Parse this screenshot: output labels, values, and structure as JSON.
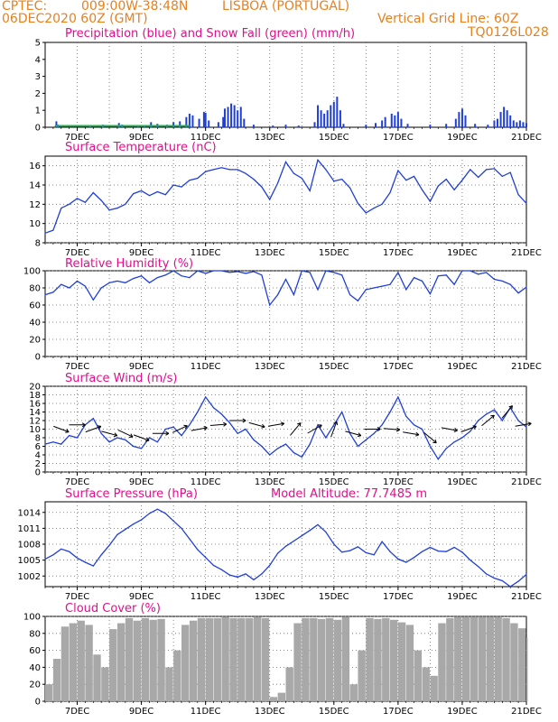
{
  "header": {
    "source": "CPTEC:",
    "coords": "009:00W-38:48N",
    "location": "LISBOA (PORTUGAL)",
    "run": "06DEC2020 60Z (GMT)",
    "grid_note": "Vertical Grid Line: 60Z",
    "model_code": "TQ0126L028"
  },
  "colors": {
    "header": "#e8801e",
    "title": "#e0108a",
    "line": "#1f3fd6",
    "snow": "#22b14c",
    "cloud": "#a8a8a8"
  },
  "chart_data": [
    {
      "type": "bar",
      "title": "Precipitation (blue) and Snow Fall (green) (mm/h)",
      "ylim": [
        0,
        5
      ],
      "yticks": [
        0,
        1,
        2,
        3,
        4,
        5
      ],
      "xticks": [
        "7DEC",
        "9DEC",
        "11DEC",
        "13DEC",
        "15DEC",
        "17DEC",
        "19DEC",
        "21DEC"
      ],
      "series": [
        {
          "points": [
            [
              6.35,
              0.35
            ],
            [
              6.4,
              0.15
            ],
            [
              7.4,
              0.1
            ],
            [
              7.8,
              0.15
            ],
            [
              8.3,
              0.25
            ],
            [
              8.4,
              0.15
            ],
            [
              8.9,
              0.1
            ],
            [
              9.1,
              0.1
            ],
            [
              9.3,
              0.3
            ],
            [
              9.5,
              0.2
            ],
            [
              9.8,
              0.15
            ],
            [
              10.0,
              0.3
            ],
            [
              10.2,
              0.35
            ],
            [
              10.4,
              0.6
            ],
            [
              10.5,
              0.8
            ],
            [
              10.6,
              0.7
            ],
            [
              10.8,
              0.5
            ],
            [
              10.95,
              0.9
            ],
            [
              11.0,
              0.85
            ],
            [
              11.1,
              0.4
            ],
            [
              11.4,
              0.3
            ],
            [
              11.55,
              0.6
            ],
            [
              11.6,
              1.1
            ],
            [
              11.7,
              1.2
            ],
            [
              11.8,
              1.4
            ],
            [
              11.9,
              1.3
            ],
            [
              12.0,
              1.0
            ],
            [
              12.1,
              1.2
            ],
            [
              12.2,
              0.5
            ],
            [
              12.5,
              0.15
            ],
            [
              13.1,
              0.1
            ],
            [
              13.5,
              0.15
            ],
            [
              13.9,
              0.1
            ],
            [
              14.4,
              0.3
            ],
            [
              14.5,
              1.3
            ],
            [
              14.6,
              1.0
            ],
            [
              14.7,
              0.8
            ],
            [
              14.8,
              1.0
            ],
            [
              14.9,
              1.3
            ],
            [
              15.0,
              1.5
            ],
            [
              15.1,
              1.8
            ],
            [
              15.2,
              1.0
            ],
            [
              15.3,
              0.2
            ],
            [
              16.0,
              0.15
            ],
            [
              16.3,
              0.25
            ],
            [
              16.5,
              0.4
            ],
            [
              16.6,
              0.6
            ],
            [
              16.8,
              0.8
            ],
            [
              16.9,
              0.7
            ],
            [
              17.0,
              0.9
            ],
            [
              17.1,
              0.5
            ],
            [
              17.3,
              0.2
            ],
            [
              18.0,
              0.15
            ],
            [
              18.5,
              0.2
            ],
            [
              18.8,
              0.5
            ],
            [
              18.9,
              0.9
            ],
            [
              19.0,
              1.1
            ],
            [
              19.1,
              0.7
            ],
            [
              19.4,
              0.2
            ],
            [
              19.8,
              0.15
            ],
            [
              20.0,
              0.4
            ],
            [
              20.1,
              0.5
            ],
            [
              20.2,
              0.9
            ],
            [
              20.3,
              1.2
            ],
            [
              20.4,
              1.0
            ],
            [
              20.5,
              0.7
            ],
            [
              20.6,
              0.4
            ],
            [
              20.7,
              0.3
            ],
            [
              20.8,
              0.4
            ],
            [
              20.9,
              0.3
            ],
            [
              21.0,
              0.25
            ]
          ]
        },
        {
          "points": [
            [
              6.3,
              0.08
            ],
            [
              7.0,
              0.08
            ],
            [
              8.0,
              0.08
            ],
            [
              9.0,
              0.08
            ],
            [
              10.0,
              0.08
            ],
            [
              10.5,
              0.08
            ]
          ]
        }
      ]
    },
    {
      "type": "line",
      "title": "Surface Temperature (nC)",
      "ylim": [
        8,
        17
      ],
      "yticks": [
        8,
        10,
        12,
        14,
        16
      ],
      "xticks": [
        "7DEC",
        "9DEC",
        "11DEC",
        "13DEC",
        "15DEC",
        "17DEC",
        "19DEC",
        "21DEC"
      ],
      "x": [
        6.0,
        6.25,
        6.5,
        6.75,
        7.0,
        7.25,
        7.5,
        7.75,
        8.0,
        8.25,
        8.5,
        8.75,
        9.0,
        9.25,
        9.5,
        9.75,
        10.0,
        10.25,
        10.5,
        10.75,
        11.0,
        11.25,
        11.5,
        11.75,
        12.0,
        12.25,
        12.5,
        12.75,
        13.0,
        13.25,
        13.5,
        13.75,
        14.0,
        14.25,
        14.5,
        14.75,
        15.0,
        15.25,
        15.5,
        15.75,
        16.0,
        16.25,
        16.5,
        16.75,
        17.0,
        17.25,
        17.5,
        17.75,
        18.0,
        18.25,
        18.5,
        18.75,
        19.0,
        19.25,
        19.5,
        19.75,
        20.0,
        20.25,
        20.5,
        20.75,
        21.0
      ],
      "series": [
        {
          "values": [
            9.0,
            9.3,
            11.6,
            12.0,
            12.6,
            12.2,
            13.2,
            12.4,
            11.4,
            11.6,
            12.0,
            13.1,
            13.4,
            12.9,
            13.3,
            13.0,
            14.0,
            13.8,
            14.5,
            14.7,
            15.4,
            15.6,
            15.8,
            15.6,
            15.6,
            15.2,
            14.6,
            13.8,
            12.5,
            14.2,
            16.4,
            15.2,
            14.7,
            13.4,
            16.6,
            15.6,
            14.4,
            14.6,
            13.7,
            12.1,
            11.1,
            11.6,
            12.0,
            13.2,
            15.5,
            14.5,
            14.9,
            13.5,
            12.3,
            13.9,
            14.6,
            13.5,
            14.5,
            15.6,
            14.8,
            15.6,
            15.7,
            14.9,
            15.3,
            13.0,
            12.1
          ]
        }
      ]
    },
    {
      "type": "line",
      "title": "Relative Humidity (%)",
      "ylim": [
        0,
        100
      ],
      "yticks": [
        0,
        20,
        40,
        60,
        80,
        100
      ],
      "xticks": [
        "7DEC",
        "9DEC",
        "11DEC",
        "13DEC",
        "15DEC",
        "17DEC",
        "19DEC",
        "21DEC"
      ],
      "x": [
        6.0,
        6.25,
        6.5,
        6.75,
        7.0,
        7.25,
        7.5,
        7.75,
        8.0,
        8.25,
        8.5,
        8.75,
        9.0,
        9.25,
        9.5,
        9.75,
        10.0,
        10.25,
        10.5,
        10.75,
        11.0,
        11.25,
        11.5,
        11.75,
        12.0,
        12.25,
        12.5,
        12.75,
        13.0,
        13.25,
        13.5,
        13.75,
        14.0,
        14.25,
        14.5,
        14.75,
        15.0,
        15.25,
        15.5,
        15.75,
        16.0,
        16.25,
        16.5,
        16.75,
        17.0,
        17.25,
        17.5,
        17.75,
        18.0,
        18.25,
        18.5,
        18.75,
        19.0,
        19.25,
        19.5,
        19.75,
        20.0,
        20.25,
        20.5,
        20.75,
        21.0
      ],
      "series": [
        {
          "values": [
            72,
            75,
            84,
            80,
            88,
            82,
            66,
            80,
            86,
            88,
            86,
            91,
            94,
            86,
            92,
            95,
            100,
            94,
            92,
            100,
            97,
            100,
            100,
            98,
            99,
            97,
            99,
            95,
            60,
            72,
            90,
            72,
            100,
            98,
            78,
            100,
            98,
            95,
            72,
            65,
            78,
            80,
            82,
            84,
            98,
            78,
            92,
            88,
            73,
            94,
            95,
            84,
            100,
            100,
            96,
            98,
            90,
            88,
            84,
            74,
            81
          ]
        }
      ]
    },
    {
      "type": "line",
      "title": "Surface Wind (m/s)",
      "ylim": [
        0,
        20
      ],
      "yticks": [
        0,
        2,
        4,
        6,
        8,
        10,
        12,
        14,
        16,
        18,
        20
      ],
      "xticks": [
        "7DEC",
        "9DEC",
        "11DEC",
        "13DEC",
        "15DEC",
        "17DEC",
        "19DEC",
        "21DEC"
      ],
      "x": [
        6.0,
        6.25,
        6.5,
        6.75,
        7.0,
        7.25,
        7.5,
        7.75,
        8.0,
        8.25,
        8.5,
        8.75,
        9.0,
        9.25,
        9.5,
        9.75,
        10.0,
        10.25,
        10.5,
        10.75,
        11.0,
        11.25,
        11.5,
        11.75,
        12.0,
        12.25,
        12.5,
        12.75,
        13.0,
        13.25,
        13.5,
        13.75,
        14.0,
        14.25,
        14.5,
        14.75,
        15.0,
        15.25,
        15.5,
        15.75,
        16.0,
        16.25,
        16.5,
        16.75,
        17.0,
        17.25,
        17.5,
        17.75,
        18.0,
        18.25,
        18.5,
        18.75,
        19.0,
        19.25,
        19.5,
        19.75,
        20.0,
        20.25,
        20.5,
        20.75,
        21.0
      ],
      "series": [
        {
          "values": [
            6.5,
            7.0,
            6.5,
            8.5,
            8.0,
            11.0,
            12.5,
            9.0,
            7.0,
            8.0,
            7.5,
            6.0,
            5.5,
            8.0,
            7.0,
            10.0,
            10.5,
            8.5,
            11.0,
            14.0,
            17.5,
            15.0,
            13.5,
            11.5,
            9.0,
            10.0,
            7.5,
            6.0,
            4.0,
            5.5,
            6.5,
            4.5,
            3.5,
            6.5,
            11.0,
            8.0,
            11.0,
            14.0,
            9.0,
            6.0,
            7.5,
            9.0,
            11.0,
            14.0,
            17.5,
            13.0,
            11.0,
            10.0,
            6.0,
            3.0,
            5.5,
            7.0,
            8.0,
            9.5,
            12.0,
            13.5,
            14.5,
            12.0,
            15.0,
            12.0,
            10.5
          ]
        }
      ]
    },
    {
      "type": "line",
      "title": "Surface Pressure (hPa)",
      "subtitle": "Model Altitude: 77.7485 m",
      "ylim": [
        1000,
        1016
      ],
      "yticks": [
        1002,
        1005,
        1008,
        1011,
        1014
      ],
      "xticks": [
        "7DEC",
        "9DEC",
        "11DEC",
        "13DEC",
        "15DEC",
        "17DEC",
        "19DEC",
        "21DEC"
      ],
      "x": [
        6.0,
        6.25,
        6.5,
        6.75,
        7.0,
        7.25,
        7.5,
        7.75,
        8.0,
        8.25,
        8.5,
        8.75,
        9.0,
        9.25,
        9.5,
        9.75,
        10.0,
        10.25,
        10.5,
        10.75,
        11.0,
        11.25,
        11.5,
        11.75,
        12.0,
        12.25,
        12.5,
        12.75,
        13.0,
        13.25,
        13.5,
        13.75,
        14.0,
        14.25,
        14.5,
        14.75,
        15.0,
        15.25,
        15.5,
        15.75,
        16.0,
        16.25,
        16.5,
        16.75,
        17.0,
        17.25,
        17.5,
        17.75,
        18.0,
        18.25,
        18.5,
        18.75,
        19.0,
        19.25,
        19.5,
        19.75,
        20.0,
        20.25,
        20.5,
        20.75,
        21.0
      ],
      "series": [
        {
          "values": [
            1005.2,
            1006.0,
            1007.1,
            1006.6,
            1005.4,
            1004.6,
            1003.9,
            1006.0,
            1007.8,
            1009.8,
            1010.8,
            1011.8,
            1012.6,
            1013.8,
            1014.6,
            1013.8,
            1012.4,
            1011.0,
            1009.0,
            1007.0,
            1005.5,
            1004.0,
            1003.2,
            1002.2,
            1001.8,
            1002.4,
            1001.3,
            1002.4,
            1004.0,
            1006.3,
            1007.6,
            1008.6,
            1009.6,
            1010.6,
            1011.7,
            1010.3,
            1008.0,
            1006.5,
            1006.8,
            1007.5,
            1006.4,
            1006.0,
            1008.5,
            1006.6,
            1005.2,
            1004.6,
            1005.5,
            1006.6,
            1007.4,
            1006.7,
            1006.6,
            1007.4,
            1006.5,
            1005.0,
            1003.8,
            1002.4,
            1001.6,
            1001.1,
            1000.0,
            1001.0,
            1002.3
          ]
        }
      ]
    },
    {
      "type": "bar",
      "title": "Cloud Cover (%)",
      "ylim": [
        0,
        100
      ],
      "yticks": [
        0,
        20,
        40,
        60,
        80,
        100
      ],
      "xticks": [
        "7DEC",
        "9DEC",
        "11DEC",
        "13DEC",
        "15DEC",
        "17DEC",
        "19DEC",
        "21DEC"
      ],
      "x": [
        6.0,
        6.25,
        6.5,
        6.75,
        7.0,
        7.25,
        7.5,
        7.75,
        8.0,
        8.25,
        8.5,
        8.75,
        9.0,
        9.25,
        9.5,
        9.75,
        10.0,
        10.25,
        10.5,
        10.75,
        11.0,
        11.25,
        11.5,
        11.75,
        12.0,
        12.25,
        12.5,
        12.75,
        13.0,
        13.25,
        13.5,
        13.75,
        14.0,
        14.25,
        14.5,
        14.75,
        15.0,
        15.25,
        15.5,
        15.75,
        16.0,
        16.25,
        16.5,
        16.75,
        17.0,
        17.25,
        17.5,
        17.75,
        18.0,
        18.25,
        18.5,
        18.75,
        19.0,
        19.25,
        19.5,
        19.75,
        20.0,
        20.25,
        20.5,
        20.75,
        21.0
      ],
      "series": [
        {
          "values": [
            20,
            50,
            88,
            92,
            95,
            90,
            55,
            40,
            85,
            92,
            98,
            95,
            98,
            96,
            97,
            40,
            60,
            90,
            95,
            98,
            98,
            98,
            99,
            98,
            98,
            98,
            99,
            98,
            5,
            10,
            40,
            92,
            98,
            98,
            97,
            98,
            96,
            99,
            20,
            60,
            98,
            97,
            98,
            96,
            93,
            90,
            60,
            40,
            30,
            92,
            98,
            99,
            99,
            99,
            99,
            99,
            99,
            98,
            92,
            86,
            75
          ]
        }
      ]
    }
  ]
}
